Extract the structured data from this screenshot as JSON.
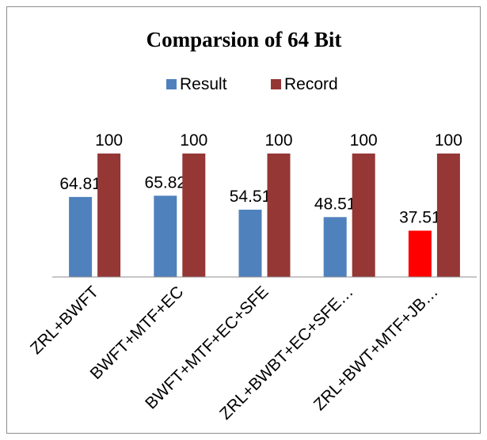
{
  "chart_data": {
    "type": "bar",
    "title": "Comparsion of 64 Bit",
    "categories": [
      "ZRL+BWFT",
      "BWFT+MTF+EC",
      "BWFT+MTF+EC+SFE",
      "ZRL+BWBT+EC+SFE…",
      "ZRL+BWT+MTF+JB…"
    ],
    "series": [
      {
        "name": "Result",
        "values": [
          64.81,
          65.82,
          54.51,
          48.51,
          37.51
        ],
        "color": "#4f81bd",
        "highlight": {
          "index": 4,
          "color": "#ff0000"
        }
      },
      {
        "name": "Record",
        "values": [
          100,
          100,
          100,
          100,
          100
        ],
        "color": "#953735"
      }
    ],
    "ylim": [
      0,
      100
    ],
    "grid": false,
    "legend_position": "top",
    "xlabel": "",
    "ylabel": ""
  }
}
